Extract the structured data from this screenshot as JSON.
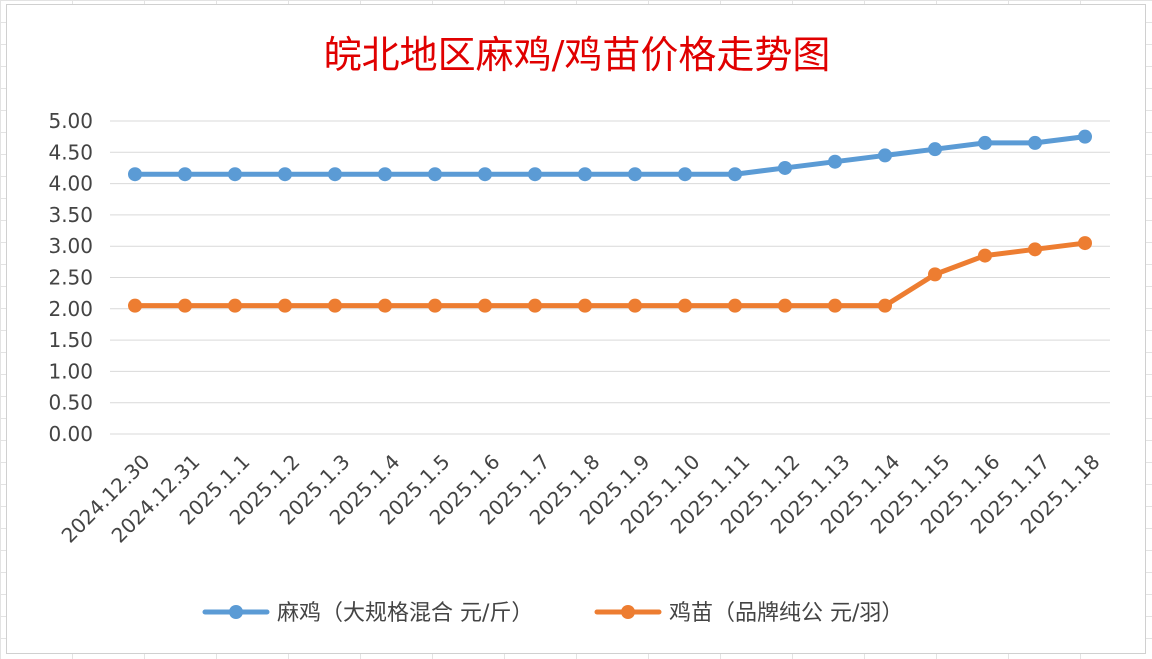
{
  "chart_data": {
    "type": "line",
    "title": "皖北地区麻鸡/鸡苗价格走势图",
    "categories": [
      "2024.12.30",
      "2024.12.31",
      "2025.1.1",
      "2025.1.2",
      "2025.1.3",
      "2025.1.4",
      "2025.1.5",
      "2025.1.6",
      "2025.1.7",
      "2025.1.8",
      "2025.1.9",
      "2025.1.10",
      "2025.1.11",
      "2025.1.12",
      "2025.1.13",
      "2025.1.14",
      "2025.1.15",
      "2025.1.16",
      "2025.1.17",
      "2025.1.18"
    ],
    "series": [
      {
        "name": "麻鸡（大规格混合 元/斤）",
        "color": "#5b9bd5",
        "values": [
          4.15,
          4.15,
          4.15,
          4.15,
          4.15,
          4.15,
          4.15,
          4.15,
          4.15,
          4.15,
          4.15,
          4.15,
          4.15,
          4.25,
          4.35,
          4.45,
          4.55,
          4.65,
          4.65,
          4.75
        ]
      },
      {
        "name": "鸡苗（品牌纯公 元/羽）",
        "color": "#ed7d31",
        "values": [
          2.05,
          2.05,
          2.05,
          2.05,
          2.05,
          2.05,
          2.05,
          2.05,
          2.05,
          2.05,
          2.05,
          2.05,
          2.05,
          2.05,
          2.05,
          2.05,
          2.55,
          2.85,
          2.95,
          3.05
        ]
      }
    ],
    "ylim": [
      0,
      5
    ],
    "yticks": [
      "0.00",
      "0.50",
      "1.00",
      "1.50",
      "2.00",
      "2.50",
      "3.00",
      "3.50",
      "4.00",
      "4.50",
      "5.00"
    ],
    "grid": true,
    "legend": "bottom"
  }
}
